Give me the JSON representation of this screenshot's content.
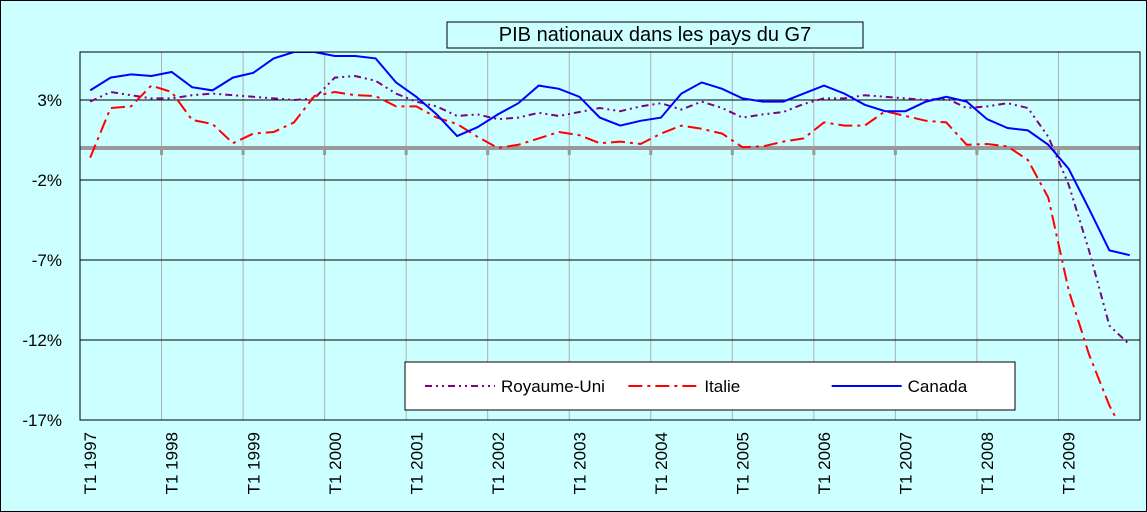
{
  "chart_data": {
    "type": "line",
    "title": "PIB nationaux dans les pays du G7",
    "categories": [
      "T1 1997",
      null,
      null,
      null,
      "T1 1998",
      null,
      null,
      null,
      "T1 1999",
      null,
      null,
      null,
      "T1 2000",
      null,
      null,
      null,
      "T1 2001",
      null,
      null,
      null,
      "T1 2002",
      null,
      null,
      null,
      "T1 2003",
      null,
      null,
      null,
      "T1 2004",
      null,
      null,
      null,
      "T1 2005",
      null,
      null,
      null,
      "T1 2006",
      null,
      null,
      null,
      "T1 2007",
      null,
      null,
      null,
      "T1 2008",
      null,
      null,
      null,
      "T1 2009",
      null,
      null,
      null
    ],
    "series": [
      {
        "name": "Royaume-Uni",
        "color": "#800080",
        "style": "dash-dot-dot",
        "values": [
          2.9,
          3.5,
          3.3,
          3.1,
          3.1,
          3.3,
          3.4,
          3.3,
          3.2,
          3.1,
          3.0,
          3.1,
          4.4,
          4.5,
          4.2,
          3.4,
          2.9,
          2.6,
          2.0,
          2.1,
          1.8,
          1.9,
          2.2,
          2.0,
          2.25,
          2.5,
          2.3,
          2.6,
          2.8,
          2.4,
          2.9,
          2.5,
          1.9,
          2.1,
          2.25,
          2.75,
          3.1,
          3.1,
          3.3,
          3.2,
          3.1,
          3.0,
          3.1,
          2.5,
          2.6,
          2.8,
          2.5,
          0.7,
          -2.3,
          -6.4,
          -11.1,
          -12.3
        ]
      },
      {
        "name": "Italie",
        "color": "#ff0000",
        "style": "dash-dot",
        "values": [
          -0.6,
          2.5,
          2.6,
          3.9,
          3.5,
          1.75,
          1.5,
          0.3,
          0.9,
          1.0,
          1.6,
          3.25,
          3.5,
          3.3,
          3.25,
          2.6,
          2.6,
          1.9,
          1.5,
          0.7,
          0.0,
          0.2,
          0.6,
          1.0,
          0.8,
          0.3,
          0.4,
          0.25,
          0.9,
          1.4,
          1.2,
          0.9,
          0.05,
          0.1,
          0.4,
          0.6,
          1.6,
          1.4,
          1.4,
          2.3,
          2.0,
          1.7,
          1.6,
          0.2,
          0.25,
          0.1,
          -0.75,
          -3.1,
          -8.9,
          -12.9,
          -16.1,
          -18.5
        ]
      },
      {
        "name": "Canada",
        "color": "#0000ff",
        "style": "solid",
        "values": [
          3.6,
          4.4,
          4.6,
          4.5,
          4.75,
          3.8,
          3.6,
          4.4,
          4.7,
          5.6,
          6.0,
          6.0,
          5.75,
          5.75,
          5.6,
          4.1,
          3.2,
          2.1,
          0.75,
          1.3,
          2.1,
          2.8,
          3.9,
          3.7,
          3.2,
          1.9,
          1.4,
          1.7,
          1.9,
          3.4,
          4.1,
          3.7,
          3.1,
          2.9,
          2.9,
          3.4,
          3.9,
          3.4,
          2.7,
          2.3,
          2.3,
          2.9,
          3.2,
          2.9,
          1.8,
          1.25,
          1.1,
          0.2,
          -1.3,
          -3.8,
          -6.4,
          -6.7
        ]
      }
    ],
    "ylim": [
      -17,
      6
    ],
    "yticks": [
      {
        "value": -17,
        "label": "-17%"
      },
      {
        "value": -12,
        "label": "-12%"
      },
      {
        "value": -7,
        "label": "-7%"
      },
      {
        "value": -2,
        "label": "-2%"
      },
      {
        "value": 3,
        "label": "3%"
      }
    ],
    "grid": true,
    "legend": "bottom"
  }
}
